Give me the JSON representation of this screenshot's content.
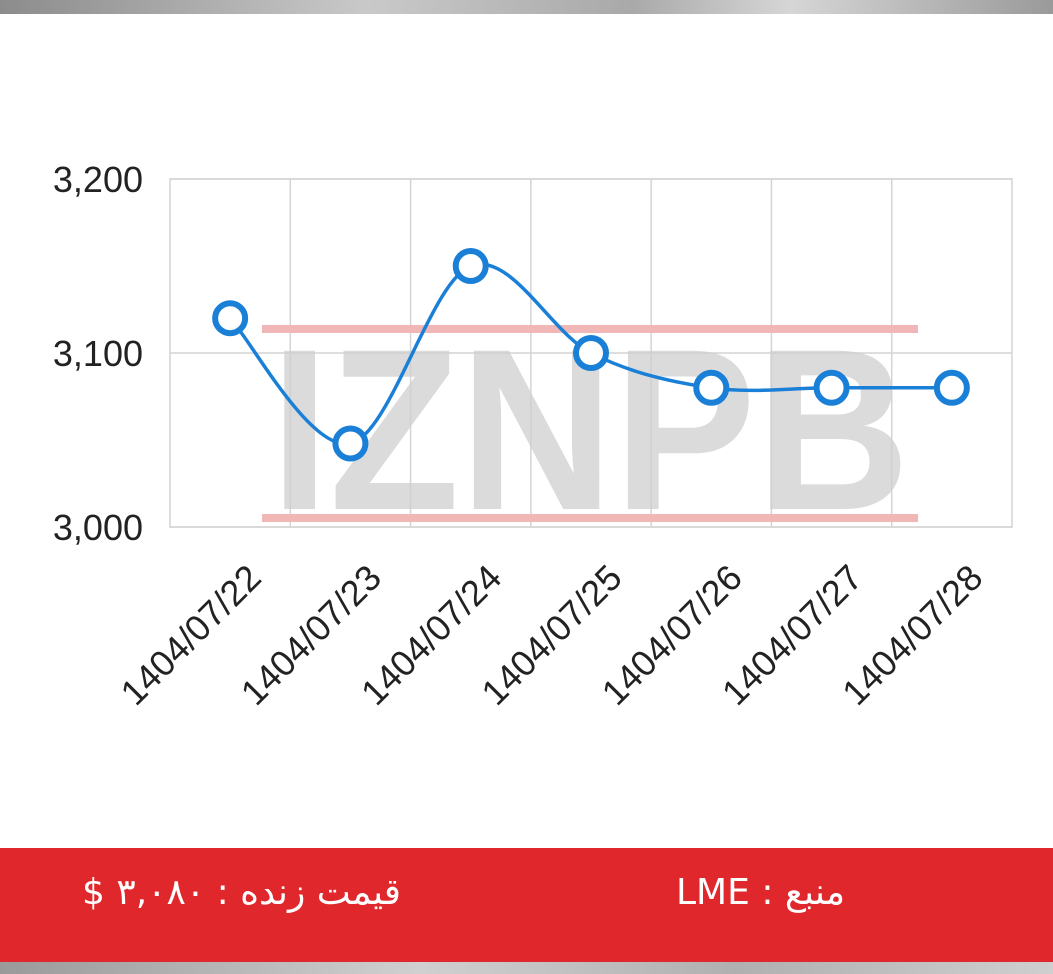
{
  "chart_data": {
    "type": "line",
    "x": [
      "1404/07/22",
      "1404/07/23",
      "1404/07/24",
      "1404/07/25",
      "1404/07/26",
      "1404/07/27",
      "1404/07/28"
    ],
    "series": [
      {
        "values": [
          3120,
          3048,
          3150,
          3100,
          3080,
          3080,
          3080
        ]
      }
    ],
    "ylim": [
      3000,
      3200
    ],
    "yticks": [
      3000,
      3100,
      3200
    ],
    "ytick_labels": [
      "3,000",
      "3,100",
      "3,200"
    ],
    "grid": true,
    "line_color": "#1a7fd6"
  },
  "watermark": {
    "text": "IZNPB"
  },
  "footer": {
    "price_label": "قیمت زنده : ۳,۰۸۰ $",
    "source_label": "منبع : LME"
  },
  "colors": {
    "footer_bg": "#e0282c",
    "line": "#1a7fd6",
    "grid": "#d4d4d4"
  }
}
